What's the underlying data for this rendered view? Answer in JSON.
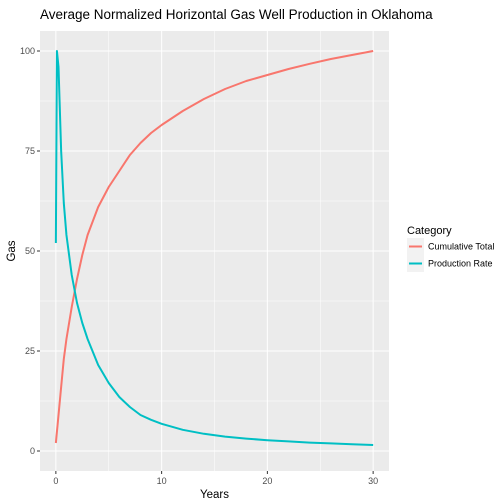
{
  "chart_data": {
    "type": "line",
    "title": "Average Normalized Horizontal Gas Well Production in Oklahoma",
    "xlabel": "Years",
    "ylabel": "Gas",
    "xlim": [
      -1.5,
      31.5
    ],
    "ylim": [
      -5,
      105
    ],
    "x_ticks": [
      0,
      10,
      20,
      30
    ],
    "y_ticks": [
      0,
      25,
      50,
      75,
      100
    ],
    "grid": true,
    "legend": {
      "title": "Category",
      "position": "right"
    },
    "series": [
      {
        "name": "Cumulative Total",
        "color": "#F8766D",
        "x": [
          0,
          0.25,
          0.5,
          0.75,
          1,
          1.5,
          2,
          2.5,
          3,
          4,
          5,
          6,
          7,
          8,
          9,
          10,
          12,
          14,
          16,
          18,
          20,
          22,
          24,
          26,
          28,
          30
        ],
        "y": [
          2,
          9,
          16,
          23,
          28,
          36,
          43,
          49,
          54,
          61,
          66,
          70,
          74,
          77,
          79.5,
          81.5,
          85,
          88,
          90.5,
          92.5,
          94,
          95.5,
          96.8,
          98,
          99,
          100
        ]
      },
      {
        "name": "Production Rate",
        "color": "#00BFC4",
        "x": [
          0,
          0.1,
          0.25,
          0.5,
          0.75,
          1,
          1.5,
          2,
          2.5,
          3,
          4,
          5,
          6,
          7,
          8,
          9,
          10,
          12,
          14,
          16,
          18,
          20,
          22,
          24,
          26,
          28,
          30
        ],
        "y": [
          52,
          100,
          96,
          75,
          62,
          54,
          44,
          37,
          32,
          28,
          21.5,
          17,
          13.5,
          11,
          9,
          7.8,
          6.8,
          5.3,
          4.3,
          3.6,
          3.1,
          2.7,
          2.4,
          2.1,
          1.9,
          1.7,
          1.5
        ]
      }
    ]
  }
}
